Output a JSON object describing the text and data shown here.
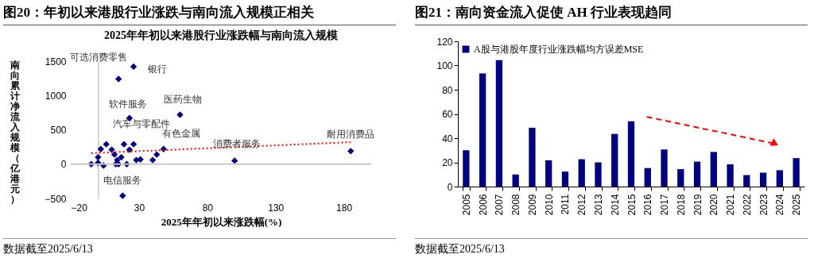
{
  "chart_data": [
    {
      "type": "scatter",
      "title": "图20：年初以来港股行业涨跌与南向流入规模正相关",
      "subtitle": "2025年年初以来港股行业涨跌幅与南向流入规模",
      "xlabel": "2025年年初以来涨跌幅(%)",
      "ylabel": "南向累计净流入规模（亿港元）",
      "xlim": [
        -20,
        200
      ],
      "xticks": [
        -20,
        30,
        80,
        130,
        180
      ],
      "ylim": [
        -500,
        1500
      ],
      "yticks": [
        -500,
        0,
        500,
        1000,
        1500
      ],
      "marker": "diamond",
      "grid": false,
      "ref_lines": [
        {
          "axis": "y",
          "value": 0,
          "color": "#c8c8c8"
        }
      ],
      "series": [
        {
          "color": "#000080",
          "x": [
            15,
            26,
            23,
            60,
            26,
            48,
            18,
            100,
            185,
            -5,
            0,
            2,
            6,
            4,
            10,
            12,
            13,
            14,
            15,
            17,
            19,
            21,
            23,
            28,
            31,
            40,
            43,
            0
          ],
          "values": [
            1240,
            1420,
            670,
            720,
            290,
            220,
            -460,
            50,
            190,
            0,
            20,
            220,
            290,
            -20,
            210,
            140,
            0,
            60,
            0,
            100,
            290,
            0,
            210,
            60,
            70,
            60,
            140,
            100
          ]
        },
        {
          "type": "line",
          "color": "#ff0000",
          "line_style": "dotted",
          "marker": "none",
          "x": [
            -5,
            185
          ],
          "values": [
            160,
            320
          ]
        }
      ],
      "annotations": [
        {
          "text": "可选消费零售",
          "x": 15,
          "y": 1240
        },
        {
          "text": "银行",
          "x": 26,
          "y": 1420
        },
        {
          "text": "软件服务",
          "x": 23,
          "y": 670
        },
        {
          "text": "医药生物",
          "x": 60,
          "y": 720
        },
        {
          "text": "汽车与零配件",
          "x": 26,
          "y": 290
        },
        {
          "text": "有色金属",
          "x": 48,
          "y": 220
        },
        {
          "text": "电信服务",
          "x": 18,
          "y": -460
        },
        {
          "text": "消费者服务",
          "x": 100,
          "y": 50
        },
        {
          "text": "耐用消费品",
          "x": 185,
          "y": 190
        },
        "数据截至2025/6/13"
      ]
    },
    {
      "type": "bar",
      "title": "图21：南向资金流入促使 AH 行业表现趋同",
      "categories": [
        "2005",
        "2006",
        "2007",
        "2008",
        "2009",
        "2010",
        "2011",
        "2012",
        "2013",
        "2014",
        "2015",
        "2016",
        "2017",
        "2018",
        "2019",
        "2020",
        "2021",
        "2022",
        "2023",
        "2024",
        "2025"
      ],
      "ylim": [
        0,
        120
      ],
      "yticks": [
        0,
        20,
        40,
        60,
        80,
        100,
        120
      ],
      "grid": false,
      "legend": "top left",
      "series": [
        {
          "name": "A股与港股年度行业涨跌幅均方误差MSE",
          "color": "#000080",
          "values": [
            30,
            93.4,
            104.5,
            10,
            48.6,
            21.7,
            12.4,
            22.6,
            20,
            43.5,
            53.9,
            15.3,
            30.6,
            14.4,
            20.6,
            28.6,
            18.4,
            9.5,
            11.5,
            13.5,
            23.5
          ]
        }
      ],
      "annotations": [
        "数据截至2025/6/13"
      ]
    }
  ]
}
